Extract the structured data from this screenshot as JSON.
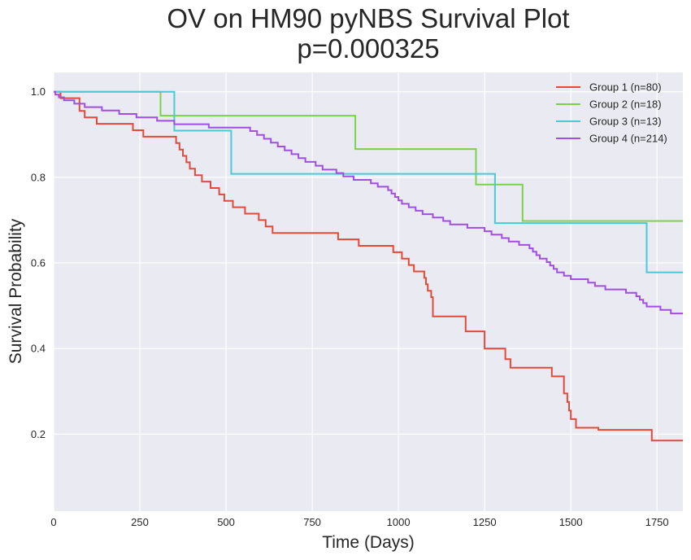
{
  "chart_data": {
    "type": "line",
    "step": true,
    "title_lines": [
      "OV on HM90 pyNBS Survival Plot",
      "p=0.000325"
    ],
    "xlabel": "Time (Days)",
    "ylabel": "Survival Probability",
    "xlim": [
      0,
      1825
    ],
    "ylim": [
      0.02,
      1.045
    ],
    "xticks": [
      0,
      250,
      500,
      750,
      1000,
      1250,
      1500,
      1750
    ],
    "yticks": [
      0.2,
      0.4,
      0.6,
      0.8,
      1.0
    ],
    "ytick_labels": [
      "0.2",
      "0.4",
      "0.6",
      "0.8",
      "1.0"
    ],
    "grid": true,
    "background_color": "#EAEAF2",
    "grid_color": "#FFFFFF",
    "legend_position": "top-right",
    "series": [
      {
        "name": "Group 1 (n=80)",
        "color": "#E24A3B",
        "x": [
          0,
          20,
          75,
          90,
          125,
          230,
          260,
          355,
          365,
          375,
          385,
          395,
          410,
          430,
          455,
          480,
          495,
          520,
          555,
          595,
          615,
          635,
          825,
          885,
          985,
          1010,
          1030,
          1045,
          1075,
          1080,
          1085,
          1095,
          1100,
          1195,
          1250,
          1310,
          1325,
          1445,
          1480,
          1490,
          1495,
          1500,
          1515,
          1580,
          1735,
          1825
        ],
        "y": [
          1.0,
          0.985,
          0.955,
          0.94,
          0.925,
          0.91,
          0.895,
          0.88,
          0.865,
          0.85,
          0.835,
          0.82,
          0.805,
          0.79,
          0.775,
          0.76,
          0.745,
          0.73,
          0.715,
          0.7,
          0.685,
          0.67,
          0.655,
          0.64,
          0.625,
          0.61,
          0.595,
          0.58,
          0.565,
          0.55,
          0.535,
          0.52,
          0.475,
          0.44,
          0.4,
          0.375,
          0.355,
          0.335,
          0.295,
          0.275,
          0.255,
          0.235,
          0.215,
          0.21,
          0.185,
          0.185
        ]
      },
      {
        "name": "Group 2 (n=18)",
        "color": "#7BD24A",
        "x": [
          0,
          310,
          875,
          1225,
          1360,
          1825
        ],
        "y": [
          1.0,
          0.944,
          0.866,
          0.783,
          0.698,
          0.698
        ]
      },
      {
        "name": "Group 3 (n=13)",
        "color": "#4BC9D6",
        "x": [
          0,
          350,
          515,
          1280,
          1720,
          1825
        ],
        "y": [
          1.0,
          0.909,
          0.808,
          0.693,
          0.578,
          0.578
        ]
      },
      {
        "name": "Group 4 (n=214)",
        "color": "#A04FE0",
        "x": [
          0,
          5,
          15,
          30,
          60,
          90,
          140,
          190,
          240,
          300,
          350,
          450,
          570,
          590,
          610,
          630,
          650,
          670,
          690,
          710,
          730,
          760,
          780,
          820,
          840,
          870,
          920,
          940,
          970,
          980,
          990,
          1000,
          1010,
          1030,
          1050,
          1070,
          1100,
          1130,
          1150,
          1200,
          1250,
          1270,
          1300,
          1320,
          1350,
          1380,
          1390,
          1400,
          1410,
          1430,
          1440,
          1450,
          1460,
          1480,
          1500,
          1550,
          1570,
          1600,
          1660,
          1690,
          1700,
          1710,
          1720,
          1760,
          1790,
          1825
        ],
        "y": [
          1.0,
          0.993,
          0.987,
          0.98,
          0.972,
          0.964,
          0.956,
          0.948,
          0.94,
          0.932,
          0.924,
          0.916,
          0.908,
          0.899,
          0.89,
          0.881,
          0.872,
          0.863,
          0.854,
          0.845,
          0.836,
          0.827,
          0.818,
          0.81,
          0.802,
          0.794,
          0.786,
          0.778,
          0.77,
          0.762,
          0.754,
          0.746,
          0.738,
          0.73,
          0.722,
          0.714,
          0.706,
          0.698,
          0.69,
          0.682,
          0.674,
          0.666,
          0.658,
          0.65,
          0.642,
          0.634,
          0.626,
          0.618,
          0.61,
          0.602,
          0.594,
          0.586,
          0.578,
          0.57,
          0.562,
          0.554,
          0.546,
          0.538,
          0.53,
          0.522,
          0.514,
          0.506,
          0.498,
          0.49,
          0.482,
          0.482
        ]
      }
    ]
  }
}
